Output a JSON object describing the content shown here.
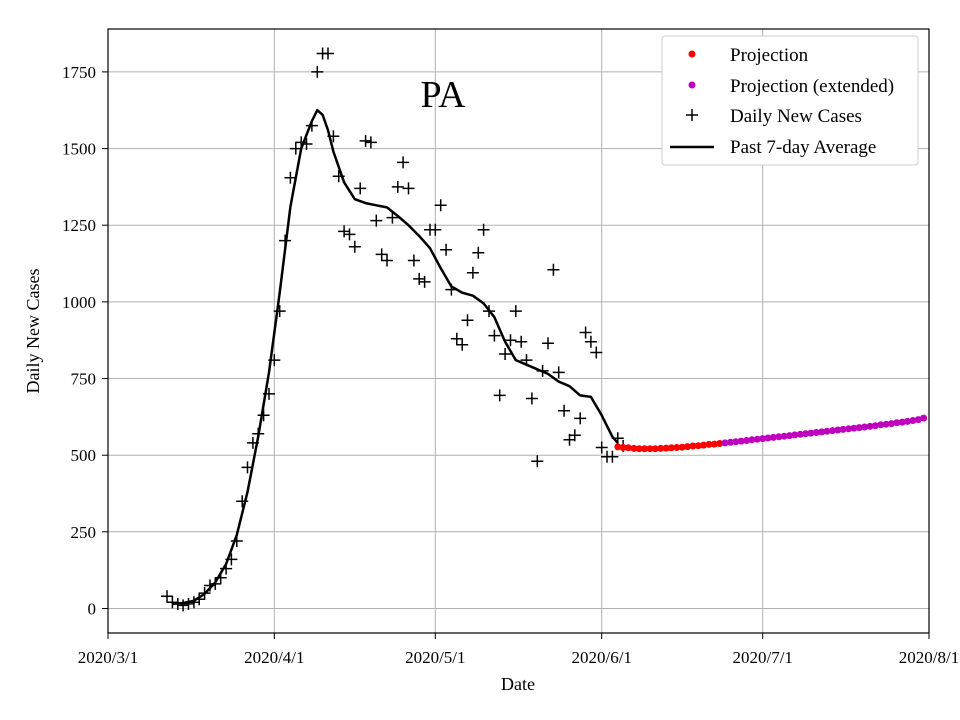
{
  "chart_data": {
    "type": "scatter",
    "title": "PA",
    "xlabel": "Date",
    "ylabel": "Daily New Cases",
    "xlim": [
      "2020-03-01",
      "2020-08-01"
    ],
    "ylim": [
      -80,
      1890
    ],
    "x_ticks": [
      "2020-03-01",
      "2020-04-01",
      "2020-05-01",
      "2020-06-01",
      "2020-07-01",
      "2020-08-01"
    ],
    "x_tick_labels": [
      "2020/3/1",
      "2020/4/1",
      "2020/5/1",
      "2020/6/1",
      "2020/7/1",
      "2020/8/1"
    ],
    "y_ticks": [
      0,
      250,
      500,
      750,
      1000,
      1250,
      1500,
      1750
    ],
    "grid": true,
    "legend_position": "top-right",
    "colors": {
      "projection": "#ff0000",
      "projection_extended": "#bf00bf",
      "daily": "#000000",
      "average": "#000000"
    },
    "series": [
      {
        "name": "Projection",
        "kind": "dots",
        "color": "#ff0000",
        "points": [
          [
            "2020-06-04",
            527
          ],
          [
            "2020-06-05",
            525
          ],
          [
            "2020-06-06",
            524
          ],
          [
            "2020-06-07",
            522
          ],
          [
            "2020-06-08",
            521
          ],
          [
            "2020-06-09",
            521
          ],
          [
            "2020-06-10",
            521
          ],
          [
            "2020-06-11",
            521
          ],
          [
            "2020-06-12",
            522
          ],
          [
            "2020-06-13",
            523
          ],
          [
            "2020-06-14",
            524
          ],
          [
            "2020-06-15",
            525
          ],
          [
            "2020-06-16",
            526
          ],
          [
            "2020-06-17",
            528
          ],
          [
            "2020-06-18",
            530
          ],
          [
            "2020-06-19",
            531
          ],
          [
            "2020-06-20",
            533
          ],
          [
            "2020-06-21",
            535
          ],
          [
            "2020-06-22",
            536
          ],
          [
            "2020-06-23",
            538
          ]
        ]
      },
      {
        "name": "Projection (extended)",
        "kind": "dots",
        "color": "#bf00bf",
        "points": [
          [
            "2020-06-24",
            540
          ],
          [
            "2020-06-25",
            542
          ],
          [
            "2020-06-26",
            544
          ],
          [
            "2020-06-27",
            546
          ],
          [
            "2020-06-28",
            548
          ],
          [
            "2020-06-29",
            550
          ],
          [
            "2020-06-30",
            552
          ],
          [
            "2020-07-01",
            554
          ],
          [
            "2020-07-02",
            556
          ],
          [
            "2020-07-03",
            558
          ],
          [
            "2020-07-04",
            560
          ],
          [
            "2020-07-05",
            562
          ],
          [
            "2020-07-06",
            564
          ],
          [
            "2020-07-07",
            566
          ],
          [
            "2020-07-08",
            568
          ],
          [
            "2020-07-09",
            570
          ],
          [
            "2020-07-10",
            572
          ],
          [
            "2020-07-11",
            574
          ],
          [
            "2020-07-12",
            576
          ],
          [
            "2020-07-13",
            578
          ],
          [
            "2020-07-14",
            580
          ],
          [
            "2020-07-15",
            582
          ],
          [
            "2020-07-16",
            584
          ],
          [
            "2020-07-17",
            586
          ],
          [
            "2020-07-18",
            588
          ],
          [
            "2020-07-19",
            590
          ],
          [
            "2020-07-20",
            592
          ],
          [
            "2020-07-21",
            594
          ],
          [
            "2020-07-22",
            596
          ],
          [
            "2020-07-23",
            599
          ],
          [
            "2020-07-24",
            601
          ],
          [
            "2020-07-25",
            603
          ],
          [
            "2020-07-26",
            606
          ],
          [
            "2020-07-27",
            608
          ],
          [
            "2020-07-28",
            610
          ],
          [
            "2020-07-29",
            613
          ],
          [
            "2020-07-30",
            616
          ],
          [
            "2020-07-31",
            621
          ]
        ]
      },
      {
        "name": "Daily New Cases",
        "kind": "plus",
        "color": "#000000",
        "points": [
          [
            "2020-03-12",
            40
          ],
          [
            "2020-03-13",
            20
          ],
          [
            "2020-03-14",
            15
          ],
          [
            "2020-03-15",
            10
          ],
          [
            "2020-03-16",
            15
          ],
          [
            "2020-03-17",
            20
          ],
          [
            "2020-03-18",
            30
          ],
          [
            "2020-03-19",
            50
          ],
          [
            "2020-03-20",
            75
          ],
          [
            "2020-03-21",
            80
          ],
          [
            "2020-03-22",
            100
          ],
          [
            "2020-03-23",
            130
          ],
          [
            "2020-03-24",
            160
          ],
          [
            "2020-03-25",
            220
          ],
          [
            "2020-03-26",
            350
          ],
          [
            "2020-03-27",
            460
          ],
          [
            "2020-03-28",
            540
          ],
          [
            "2020-03-29",
            570
          ],
          [
            "2020-03-30",
            630
          ],
          [
            "2020-03-31",
            700
          ],
          [
            "2020-04-01",
            810
          ],
          [
            "2020-04-02",
            970
          ],
          [
            "2020-04-03",
            1200
          ],
          [
            "2020-04-04",
            1405
          ],
          [
            "2020-04-05",
            1500
          ],
          [
            "2020-04-06",
            1520
          ],
          [
            "2020-04-07",
            1515
          ],
          [
            "2020-04-08",
            1575
          ],
          [
            "2020-04-09",
            1750
          ],
          [
            "2020-04-10",
            1810
          ],
          [
            "2020-04-11",
            1810
          ],
          [
            "2020-04-12",
            1540
          ],
          [
            "2020-04-13",
            1410
          ],
          [
            "2020-04-14",
            1230
          ],
          [
            "2020-04-15",
            1220
          ],
          [
            "2020-04-16",
            1180
          ],
          [
            "2020-04-17",
            1370
          ],
          [
            "2020-04-18",
            1525
          ],
          [
            "2020-04-19",
            1520
          ],
          [
            "2020-04-20",
            1265
          ],
          [
            "2020-04-21",
            1155
          ],
          [
            "2020-04-22",
            1135
          ],
          [
            "2020-04-23",
            1275
          ],
          [
            "2020-04-24",
            1375
          ],
          [
            "2020-04-25",
            1455
          ],
          [
            "2020-04-26",
            1370
          ],
          [
            "2020-04-27",
            1135
          ],
          [
            "2020-04-28",
            1075
          ],
          [
            "2020-04-29",
            1065
          ],
          [
            "2020-04-30",
            1235
          ],
          [
            "2020-05-01",
            1235
          ],
          [
            "2020-05-02",
            1315
          ],
          [
            "2020-05-03",
            1170
          ],
          [
            "2020-05-04",
            1040
          ],
          [
            "2020-05-05",
            880
          ],
          [
            "2020-05-06",
            860
          ],
          [
            "2020-05-07",
            940
          ],
          [
            "2020-05-08",
            1095
          ],
          [
            "2020-05-09",
            1160
          ],
          [
            "2020-05-10",
            1235
          ],
          [
            "2020-05-11",
            970
          ],
          [
            "2020-05-12",
            890
          ],
          [
            "2020-05-13",
            695
          ],
          [
            "2020-05-14",
            830
          ],
          [
            "2020-05-15",
            875
          ],
          [
            "2020-05-16",
            970
          ],
          [
            "2020-05-17",
            870
          ],
          [
            "2020-05-18",
            810
          ],
          [
            "2020-05-19",
            685
          ],
          [
            "2020-05-20",
            480
          ],
          [
            "2020-05-21",
            775
          ],
          [
            "2020-05-22",
            865
          ],
          [
            "2020-05-23",
            1105
          ],
          [
            "2020-05-24",
            770
          ],
          [
            "2020-05-25",
            645
          ],
          [
            "2020-05-26",
            550
          ],
          [
            "2020-05-27",
            565
          ],
          [
            "2020-05-28",
            620
          ],
          [
            "2020-05-29",
            900
          ],
          [
            "2020-05-30",
            870
          ],
          [
            "2020-05-31",
            835
          ],
          [
            "2020-06-01",
            525
          ],
          [
            "2020-06-02",
            495
          ],
          [
            "2020-06-03",
            495
          ],
          [
            "2020-06-04",
            555
          ],
          [
            "2020-06-05",
            530
          ]
        ]
      },
      {
        "name": "Past 7-day Average",
        "kind": "line",
        "color": "#000000",
        "points": [
          [
            "2020-03-13",
            15
          ],
          [
            "2020-03-15",
            18
          ],
          [
            "2020-03-17",
            25
          ],
          [
            "2020-03-19",
            48
          ],
          [
            "2020-03-21",
            85
          ],
          [
            "2020-03-23",
            145
          ],
          [
            "2020-03-25",
            240
          ],
          [
            "2020-03-27",
            380
          ],
          [
            "2020-03-29",
            560
          ],
          [
            "2020-03-31",
            770
          ],
          [
            "2020-04-02",
            1030
          ],
          [
            "2020-04-04",
            1310
          ],
          [
            "2020-04-06",
            1500
          ],
          [
            "2020-04-08",
            1590
          ],
          [
            "2020-04-09",
            1625
          ],
          [
            "2020-04-10",
            1610
          ],
          [
            "2020-04-11",
            1560
          ],
          [
            "2020-04-12",
            1490
          ],
          [
            "2020-04-14",
            1390
          ],
          [
            "2020-04-16",
            1335
          ],
          [
            "2020-04-18",
            1322
          ],
          [
            "2020-04-20",
            1315
          ],
          [
            "2020-04-22",
            1308
          ],
          [
            "2020-04-24",
            1280
          ],
          [
            "2020-04-26",
            1250
          ],
          [
            "2020-04-28",
            1215
          ],
          [
            "2020-04-30",
            1175
          ],
          [
            "2020-05-02",
            1110
          ],
          [
            "2020-05-04",
            1050
          ],
          [
            "2020-05-06",
            1030
          ],
          [
            "2020-05-08",
            1020
          ],
          [
            "2020-05-10",
            995
          ],
          [
            "2020-05-12",
            950
          ],
          [
            "2020-05-14",
            870
          ],
          [
            "2020-05-16",
            810
          ],
          [
            "2020-05-18",
            795
          ],
          [
            "2020-05-20",
            780
          ],
          [
            "2020-05-22",
            765
          ],
          [
            "2020-05-24",
            740
          ],
          [
            "2020-05-26",
            725
          ],
          [
            "2020-05-28",
            695
          ],
          [
            "2020-05-30",
            690
          ],
          [
            "2020-06-01",
            630
          ],
          [
            "2020-06-03",
            560
          ],
          [
            "2020-06-04",
            540
          ]
        ]
      }
    ]
  }
}
